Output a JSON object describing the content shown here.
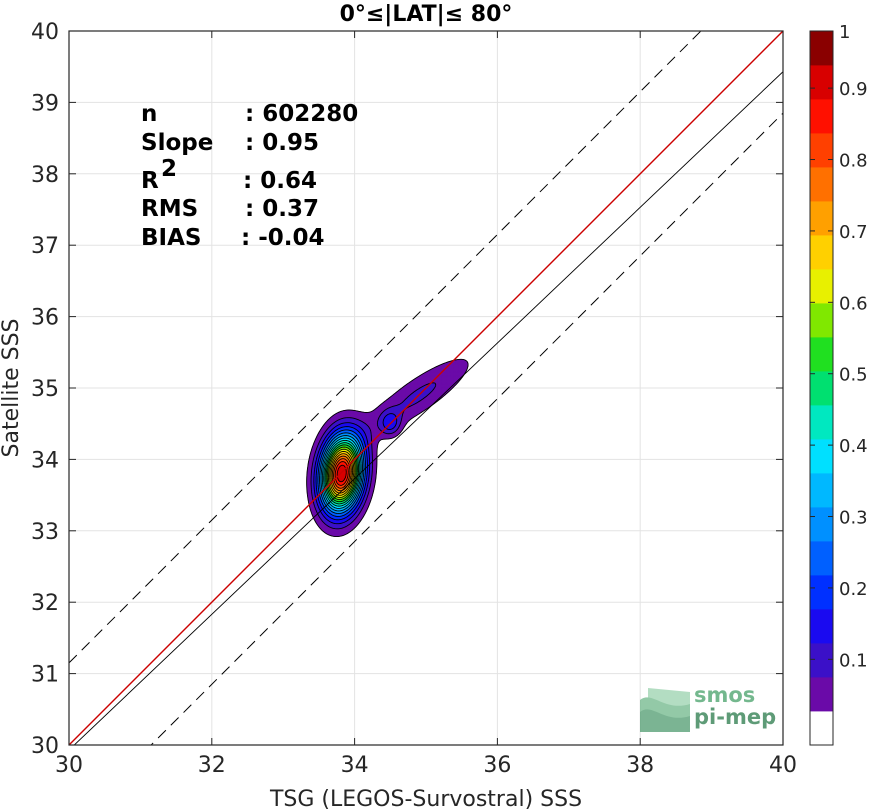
{
  "chart_data": {
    "type": "scatter",
    "title": "0°≤|LAT|≤ 80°",
    "xlabel": "TSG (LEGOS-Survostral) SSS",
    "ylabel": "Satellite SSS",
    "xlim": [
      30,
      40
    ],
    "ylim": [
      30,
      40
    ],
    "xticks": [
      "30",
      "32",
      "34",
      "36",
      "38",
      "40"
    ],
    "yticks": [
      "30",
      "31",
      "32",
      "33",
      "34",
      "35",
      "36",
      "37",
      "38",
      "39",
      "40"
    ],
    "grid": true,
    "stats": [
      {
        "label": "n",
        "value": ": 602280"
      },
      {
        "label": "Slope",
        "value": ": 0.95"
      },
      {
        "label": "R",
        "sup": "2",
        "value": ": 0.64"
      },
      {
        "label": "RMS",
        "value": ": 0.37"
      },
      {
        "label": "BIAS",
        "value": ": -0.04"
      }
    ],
    "lines": {
      "identity": {
        "color": "#cc0000",
        "slope": 1,
        "intercept": 0
      },
      "fit": {
        "color": "#000000",
        "slope": 0.95,
        "intercept": 1.43
      },
      "bounds_offset": 1.15
    },
    "density_peaks": [
      {
        "x": 33.82,
        "y": 33.8,
        "sx": 0.2,
        "sy": 0.36,
        "rho": 0.15,
        "w": 1.0
      },
      {
        "x": 34.5,
        "y": 34.5,
        "sx": 0.1,
        "sy": 0.12,
        "rho": 0.0,
        "w": 0.13
      },
      {
        "x": 34.9,
        "y": 34.9,
        "sx": 0.55,
        "sy": 0.4,
        "rho": 0.85,
        "w": 0.11
      }
    ],
    "contour_levels": [
      0.05,
      0.1,
      0.15,
      0.2,
      0.25,
      0.3,
      0.35,
      0.4,
      0.45,
      0.5,
      0.55,
      0.6,
      0.65,
      0.7,
      0.75,
      0.8,
      0.85,
      0.9,
      0.95
    ],
    "colorbar": {
      "ticks": [
        "0.1",
        "0.2",
        "0.3",
        "0.4",
        "0.5",
        "0.6",
        "0.7",
        "0.8",
        "0.9",
        "1"
      ],
      "tick_values": [
        0.1,
        0.2,
        0.3,
        0.4,
        0.5,
        0.6,
        0.7,
        0.8,
        0.9,
        1.0
      ],
      "colors": [
        "#ffffff",
        "#6a0aa8",
        "#3b10c8",
        "#1a0af0",
        "#0030ff",
        "#0060ff",
        "#0090ff",
        "#00b8ff",
        "#00e0ff",
        "#00e8c0",
        "#00e070",
        "#20e020",
        "#80e800",
        "#e8f000",
        "#ffd000",
        "#ffa000",
        "#ff7000",
        "#ff4000",
        "#ff1000",
        "#d80000",
        "#8a0000"
      ]
    }
  },
  "logo": {
    "line1": "smos",
    "line2": "pi-mep",
    "color": "#74b88e"
  }
}
